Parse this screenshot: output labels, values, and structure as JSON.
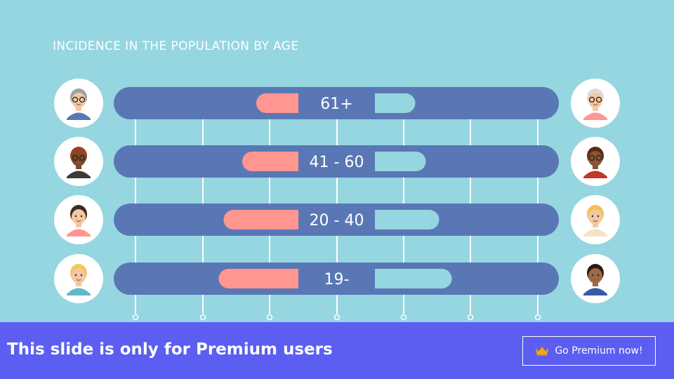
{
  "chart_data": {
    "type": "bar",
    "title": "INCIDENCE IN THE POPULATION BY AGE",
    "categories": [
      "61+",
      "41 - 60",
      "20 - 40",
      "19-"
    ],
    "series": [
      {
        "values": [
          120,
          160,
          213,
          227
        ]
      },
      {
        "values": [
          115,
          145,
          183,
          219
        ]
      }
    ],
    "xlim": [
      0,
      250
    ],
    "colors": {
      "track": "#5a77b5",
      "left": "#ff9690",
      "right": "#96d6e0",
      "gridline": "#ffffff",
      "background": "#96d6e0"
    }
  },
  "banner": {
    "text": "This slide is only for Premium users",
    "button_label": "Go Premium now!",
    "icon": "crown-icon",
    "color": "#5b5ef0"
  }
}
